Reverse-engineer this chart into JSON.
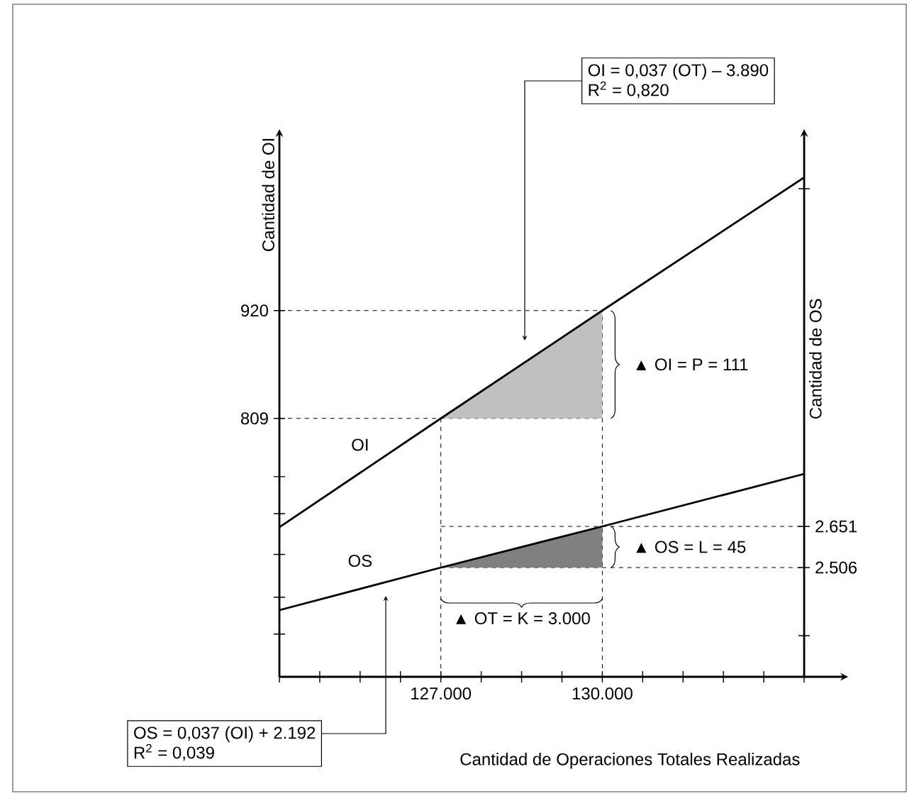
{
  "chart_data": {
    "type": "line",
    "xlabel": "Cantidad de Operaciones Totales Realizadas",
    "ylabel": "Cantidad de OI",
    "y2label": "Cantidad de OS",
    "grid": false,
    "xlim": [
      124000,
      133750
    ],
    "xticks": [
      {
        "value": 124000,
        "label": null
      },
      {
        "value": 124750,
        "label": null
      },
      {
        "value": 125500,
        "label": null
      },
      {
        "value": 126250,
        "label": null
      },
      {
        "value": 127000,
        "label": "127.000"
      },
      {
        "value": 127750,
        "label": null
      },
      {
        "value": 128500,
        "label": null
      },
      {
        "value": 129250,
        "label": null
      },
      {
        "value": 130000,
        "label": "130.000"
      },
      {
        "value": 130750,
        "label": null
      },
      {
        "value": 131500,
        "label": null
      },
      {
        "value": 132250,
        "label": null
      },
      {
        "value": 133000,
        "label": null
      },
      {
        "value": 133750,
        "label": null
      }
    ],
    "ylim": [
      543,
      1098
    ],
    "yticks": [
      {
        "value": 587,
        "label": null
      },
      {
        "value": 625,
        "label": null
      },
      {
        "value": 669,
        "label": null
      },
      {
        "value": 711,
        "label": null
      },
      {
        "value": 749,
        "label": null
      },
      809,
      920
    ],
    "y2lim": [
      2121,
      4021
    ],
    "y2ticks": [
      {
        "value": 2266,
        "label": null
      },
      {
        "value": 2506,
        "label": "2.506"
      },
      {
        "value": 2651,
        "label": "2.651"
      },
      {
        "value": 3841,
        "label": null
      }
    ],
    "series": [
      {
        "name": "OI",
        "color": "#000000",
        "x": [
          124000,
          127000,
          130000,
          133750
        ],
        "values": [
          697,
          809,
          920,
          1057
        ]
      },
      {
        "name": "OS",
        "color": "#000000",
        "axis": "y2",
        "x": [
          124000,
          127000,
          130000,
          133750
        ],
        "values": [
          2356,
          2506,
          2651,
          2836
        ]
      },
      {
        "type": "area",
        "color": "#c0c0c0",
        "x": [
          127000,
          130000,
          130000
        ],
        "values": [
          809,
          920,
          809
        ]
      },
      {
        "type": "area",
        "color": "#808080",
        "axis": "y2",
        "x": [
          127000,
          130000,
          130000
        ],
        "values": [
          2506,
          2651,
          2506
        ]
      }
    ],
    "ref_lines": [
      {
        "axis": "y",
        "value": 920,
        "line_style": "dashed"
      },
      {
        "axis": "y",
        "value": 809,
        "line_style": "dashed"
      },
      {
        "axis": "y2",
        "value": 2651,
        "line_style": "dashed"
      },
      {
        "axis": "y2",
        "value": 2506,
        "line_style": "dashed"
      },
      {
        "axis": "x",
        "value": 127000,
        "line_style": "dashed"
      },
      {
        "axis": "x",
        "value": 130000,
        "line_style": "dashed"
      }
    ],
    "annotations": [
      "OI = 0,037 (OT)  – 3.890",
      "R$^{2}$ = 0,820",
      "OS = 0,037 (OI)  + 2.192",
      "R$^{2}$ = 0,039",
      "▲ OI = P = 111",
      "▲ OS = L = 45",
      "▲ OT = K = 3.000"
    ]
  }
}
